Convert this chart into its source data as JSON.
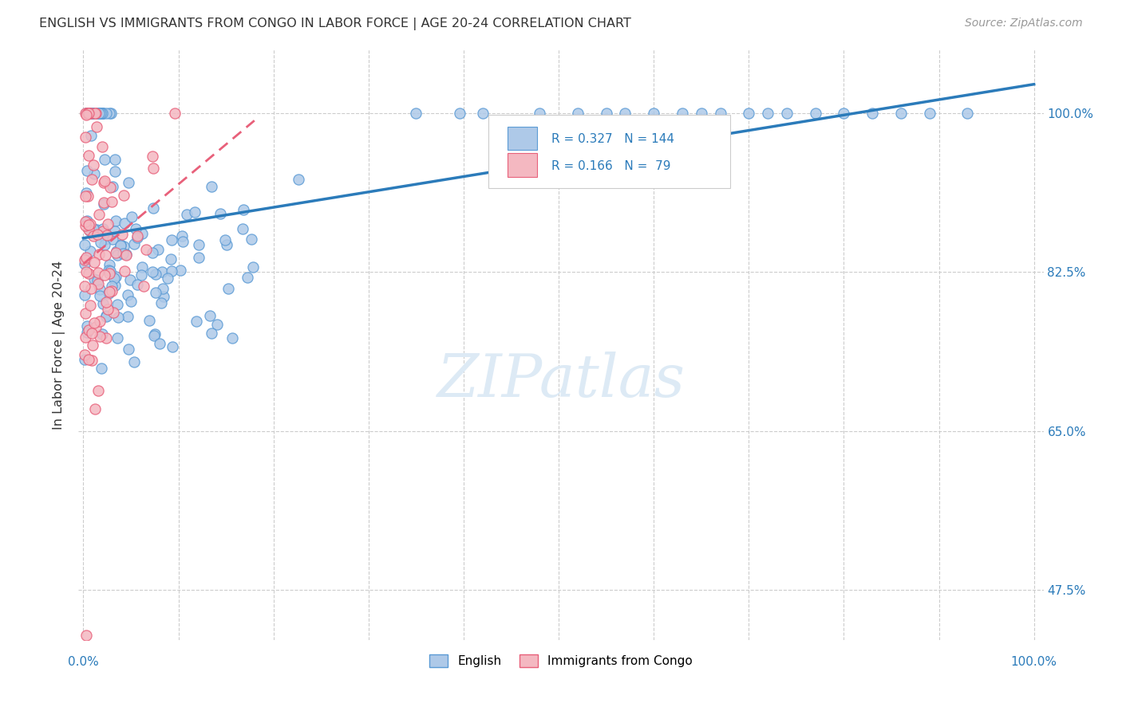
{
  "title": "ENGLISH VS IMMIGRANTS FROM CONGO IN LABOR FORCE | AGE 20-24 CORRELATION CHART",
  "source": "Source: ZipAtlas.com",
  "ylabel": "In Labor Force | Age 20-24",
  "legend_english": "English",
  "legend_congo": "Immigrants from Congo",
  "R_english": 0.327,
  "N_english": 144,
  "R_congo": 0.166,
  "N_congo": 79,
  "color_english_fill": "#aec9e8",
  "color_english_edge": "#5b9bd5",
  "color_congo_fill": "#f4b8c1",
  "color_congo_edge": "#e8607a",
  "color_line_english": "#2b7bba",
  "color_line_congo": "#e8607a",
  "color_watermark": "#ddeaf5",
  "background_color": "#ffffff",
  "xlim": [
    0.0,
    1.0
  ],
  "ylim": [
    0.42,
    1.07
  ],
  "yticks": [
    0.475,
    0.65,
    0.825,
    1.0
  ],
  "ytick_labels": [
    "47.5%",
    "65.0%",
    "82.5%",
    "100.0%"
  ]
}
